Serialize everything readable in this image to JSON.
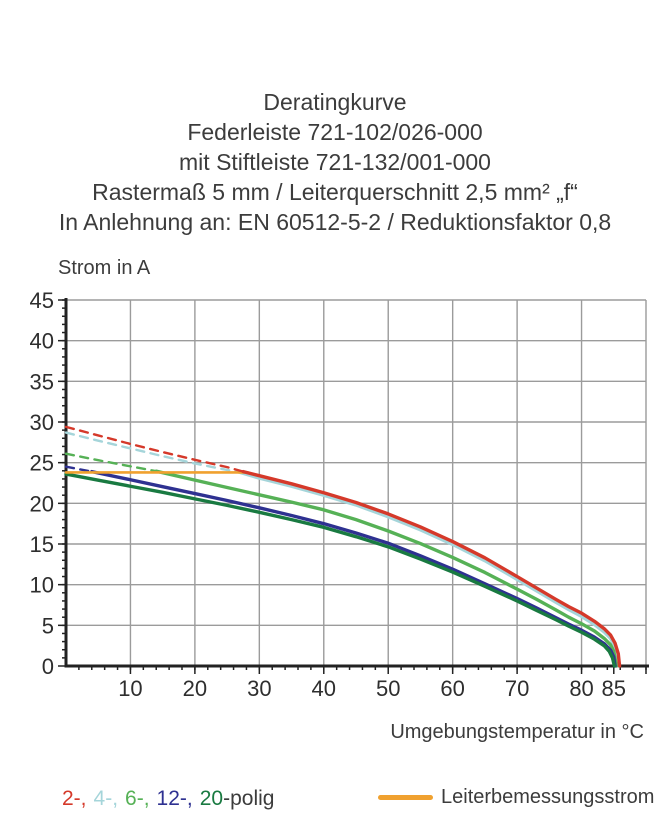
{
  "title": {
    "lines": [
      "Deratingkurve",
      "Federleiste 721-102/026-000",
      "mit Stiftleiste 721-132/001-000",
      "Rastermaß 5 mm / Leiterquerschnitt 2,5 mm² „f“",
      "In Anlehnung an: EN 60512-5-2 / Reduktionsfaktor 0,8"
    ]
  },
  "chart_data": {
    "type": "line",
    "title": "Deratingkurve",
    "xlabel": "Umgebungstemperatur in °C",
    "ylabel": "Strom in A",
    "xlim": [
      0,
      90
    ],
    "ylim": [
      0,
      45
    ],
    "grid": true,
    "grid_color": "#9b9b9b",
    "axis_color": "#222222",
    "tick_label_color": "#2e2e2e",
    "x_grid_step": 10,
    "y_grid_step": 5,
    "x_minor_step": 2,
    "y_minor_step": 1,
    "x_major_ticks": [
      10,
      20,
      30,
      40,
      50,
      60,
      70,
      80,
      85
    ],
    "x_tick_marks": [
      10,
      20,
      30,
      40,
      50,
      60,
      70,
      80,
      85,
      90
    ],
    "y_major_ticks": [
      0,
      5,
      10,
      15,
      20,
      25,
      30,
      35,
      40,
      45
    ],
    "series": [
      {
        "name": "4-polig",
        "color": "#a5d5da",
        "dashed_points": [
          [
            0,
            28.7
          ],
          [
            5,
            27.7
          ],
          [
            10,
            26.75
          ],
          [
            15,
            25.8
          ],
          [
            20,
            24.9
          ],
          [
            25,
            24.1
          ],
          [
            26.8,
            23.85
          ]
        ],
        "solid_points": [
          [
            26.8,
            23.85
          ],
          [
            30,
            23.1
          ],
          [
            35,
            22.1
          ],
          [
            40,
            21.0
          ],
          [
            45,
            19.8
          ],
          [
            50,
            18.35
          ],
          [
            55,
            16.75
          ],
          [
            60,
            14.95
          ],
          [
            65,
            12.95
          ],
          [
            70,
            10.65
          ],
          [
            73,
            9.25
          ],
          [
            76,
            7.85
          ],
          [
            78,
            6.95
          ],
          [
            80,
            6.1
          ],
          [
            82,
            5.1
          ],
          [
            83.5,
            4.2
          ],
          [
            84.5,
            3.4
          ],
          [
            85,
            2.6
          ],
          [
            85.5,
            1.3
          ],
          [
            85.7,
            0
          ]
        ]
      },
      {
        "name": "6-polig",
        "color": "#56b156",
        "dashed_points": [
          [
            0,
            26.1
          ],
          [
            5,
            25.3
          ],
          [
            10,
            24.55
          ],
          [
            14,
            23.95
          ]
        ],
        "solid_points": [
          [
            14,
            23.95
          ],
          [
            20,
            22.85
          ],
          [
            25,
            21.95
          ],
          [
            30,
            21.05
          ],
          [
            35,
            20.15
          ],
          [
            40,
            19.2
          ],
          [
            45,
            18.0
          ],
          [
            50,
            16.6
          ],
          [
            55,
            15.05
          ],
          [
            60,
            13.35
          ],
          [
            65,
            11.5
          ],
          [
            70,
            9.45
          ],
          [
            73,
            8.2
          ],
          [
            76,
            6.9
          ],
          [
            78,
            6.0
          ],
          [
            80,
            5.2
          ],
          [
            82,
            4.3
          ],
          [
            83.5,
            3.4
          ],
          [
            84.5,
            2.6
          ],
          [
            85,
            1.8
          ],
          [
            85.4,
            0
          ]
        ]
      },
      {
        "name": "12-polig",
        "color": "#2e3191",
        "dashed_points": [
          [
            0,
            24.5
          ],
          [
            4,
            23.9
          ]
        ],
        "solid_points": [
          [
            4,
            23.9
          ],
          [
            10,
            22.9
          ],
          [
            15,
            22.05
          ],
          [
            20,
            21.2
          ],
          [
            25,
            20.35
          ],
          [
            30,
            19.45
          ],
          [
            35,
            18.5
          ],
          [
            40,
            17.5
          ],
          [
            45,
            16.35
          ],
          [
            50,
            15.1
          ],
          [
            55,
            13.55
          ],
          [
            60,
            11.9
          ],
          [
            65,
            10.1
          ],
          [
            70,
            8.3
          ],
          [
            73,
            7.15
          ],
          [
            76,
            5.95
          ],
          [
            78,
            5.15
          ],
          [
            80,
            4.4
          ],
          [
            82,
            3.55
          ],
          [
            83.5,
            2.75
          ],
          [
            84.5,
            1.95
          ],
          [
            85,
            1.1
          ],
          [
            85.2,
            0
          ]
        ]
      },
      {
        "name": "20-polig",
        "color": "#197a41",
        "solid_points": [
          [
            0,
            23.6
          ],
          [
            5,
            22.85
          ],
          [
            10,
            22.1
          ],
          [
            15,
            21.35
          ],
          [
            20,
            20.55
          ],
          [
            25,
            19.75
          ],
          [
            30,
            18.9
          ],
          [
            35,
            18.0
          ],
          [
            40,
            17.05
          ],
          [
            45,
            15.9
          ],
          [
            50,
            14.65
          ],
          [
            55,
            13.15
          ],
          [
            60,
            11.55
          ],
          [
            65,
            9.8
          ],
          [
            70,
            8.0
          ],
          [
            73,
            6.85
          ],
          [
            76,
            5.7
          ],
          [
            78,
            4.9
          ],
          [
            80,
            4.15
          ],
          [
            82,
            3.3
          ],
          [
            83.5,
            2.5
          ],
          [
            84.3,
            1.8
          ],
          [
            84.8,
            1.0
          ],
          [
            85.1,
            0
          ]
        ]
      },
      {
        "name": "Leiterbemessungsstrom",
        "color": "#f0a12f",
        "width": 2.6,
        "solid_points": [
          [
            0,
            23.8
          ],
          [
            28.2,
            23.8
          ]
        ]
      },
      {
        "name": "2-polig",
        "color": "#d5392a",
        "dashed_points": [
          [
            0,
            29.4
          ],
          [
            5,
            28.35
          ],
          [
            10,
            27.3
          ],
          [
            15,
            26.3
          ],
          [
            20,
            25.35
          ],
          [
            25,
            24.45
          ],
          [
            27.5,
            23.9
          ]
        ],
        "solid_points": [
          [
            27.5,
            23.9
          ],
          [
            30,
            23.4
          ],
          [
            35,
            22.4
          ],
          [
            40,
            21.3
          ],
          [
            45,
            20.1
          ],
          [
            50,
            18.7
          ],
          [
            55,
            17.1
          ],
          [
            60,
            15.3
          ],
          [
            65,
            13.3
          ],
          [
            70,
            11.0
          ],
          [
            73,
            9.6
          ],
          [
            76,
            8.2
          ],
          [
            78,
            7.3
          ],
          [
            80,
            6.5
          ],
          [
            82,
            5.5
          ],
          [
            83.5,
            4.6
          ],
          [
            84.5,
            3.8
          ],
          [
            85.2,
            2.8
          ],
          [
            85.7,
            1.5
          ],
          [
            85.9,
            0
          ]
        ]
      }
    ]
  },
  "legend": {
    "poles": [
      {
        "label": "2-,",
        "css": "color:#d5392a"
      },
      {
        "label": "4-,",
        "css": "color:#a5d5da"
      },
      {
        "label": "6-,",
        "css": "color:#56b156"
      },
      {
        "label": "12-,",
        "css": "color:#2e3191"
      },
      {
        "label": "20",
        "css": "color:#197a41"
      }
    ],
    "poles_suffix": "-polig",
    "rated_label": "Leiterbemessungsstrom",
    "rated_swatch_css": "background:#f0a12f"
  }
}
